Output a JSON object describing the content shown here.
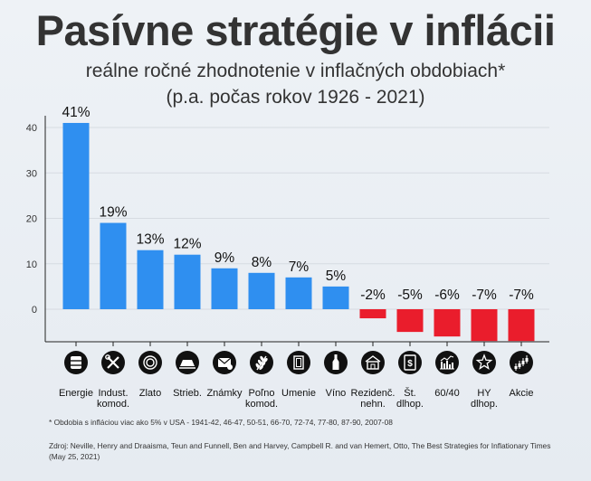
{
  "header": {
    "title": "Pasívne stratégie v inflácii",
    "subtitle_line1": "reálne ročné zhodnotenie v inflačných obdobiach*",
    "subtitle_line2": "(p.a. počas rokov 1926 - 2021)"
  },
  "chart_data": {
    "type": "bar",
    "title": "Pasívne stratégie v inflácii",
    "subtitle": "reálne ročné zhodnotenie v inflačných obdobiach* (p.a. počas rokov 1926 - 2021)",
    "xlabel": "",
    "ylabel": "",
    "ylim": [
      -7,
      42
    ],
    "yticks": [
      0,
      10,
      20,
      30,
      40
    ],
    "grid": true,
    "categories": [
      [
        "Energie"
      ],
      [
        "Indust.",
        "komod."
      ],
      [
        "Zlato"
      ],
      [
        "Strieb."
      ],
      [
        "Známky"
      ],
      [
        "Poľno",
        "komod."
      ],
      [
        "Umenie"
      ],
      [
        "Víno"
      ],
      [
        "Rezidenč.",
        "nehn."
      ],
      [
        "Št.",
        "dlhop."
      ],
      [
        "60/40"
      ],
      [
        "HY",
        "dlhop."
      ],
      [
        "Akcie"
      ]
    ],
    "values": [
      41,
      19,
      13,
      12,
      9,
      8,
      7,
      5,
      -2,
      -5,
      -6,
      -7,
      -7
    ],
    "data_labels": [
      "41%",
      "19%",
      "13%",
      "12%",
      "9%",
      "8%",
      "7%",
      "5%",
      "-2%",
      "-5%",
      "-6%",
      "-7%",
      "-7%"
    ],
    "icons": [
      "oil-barrel-icon",
      "tools-icon",
      "gold-coin-icon",
      "silver-ingot-icon",
      "stamp-letter-icon",
      "wheat-icon",
      "painting-icon",
      "wine-bottle-icon",
      "house-icon",
      "bond-document-icon",
      "portfolio-chart-icon",
      "star-icon",
      "stock-chart-icon"
    ],
    "colors": {
      "positive": "#2f8ff0",
      "negative": "#ea1d2c",
      "icon_bg": "#111111",
      "grid": "#d6dbe1"
    }
  },
  "footer": {
    "footnote": "* Obdobia s infláciou viac ako 5% v USA - 1941-42, 46-47, 50-51, 66-70,  72-74, 77-80, 87-90, 2007-08",
    "source": "Zdroj: Neville, Henry and Draaisma, Teun and Funnell, Ben and Harvey, Campbell R. and van Hemert, Otto, The Best Strategies for Inflationary Times (May 25, 2021)"
  }
}
